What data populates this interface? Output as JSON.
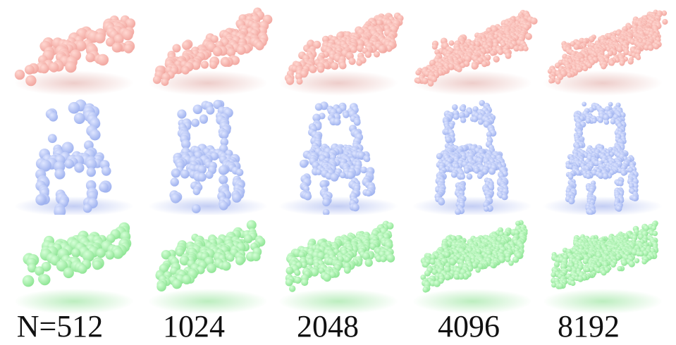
{
  "resolutions": [
    {
      "label": "N=512",
      "points": 512
    },
    {
      "label": "1024",
      "points": 1024
    },
    {
      "label": "2048",
      "points": 2048
    },
    {
      "label": "4096",
      "points": 4096
    },
    {
      "label": "8192",
      "points": 8192
    }
  ],
  "objects": [
    {
      "name": "airplane",
      "color": "#f2a7a0",
      "highlight": "#ffd8d2",
      "shadow": "#e8bcb8"
    },
    {
      "name": "chair",
      "color": "#9fb2ef",
      "highlight": "#dfe6ff",
      "shadow": "#aebcf0"
    },
    {
      "name": "car",
      "color": "#8fe595",
      "highlight": "#d6ffd8",
      "shadow": "#a6e8aa"
    }
  ]
}
